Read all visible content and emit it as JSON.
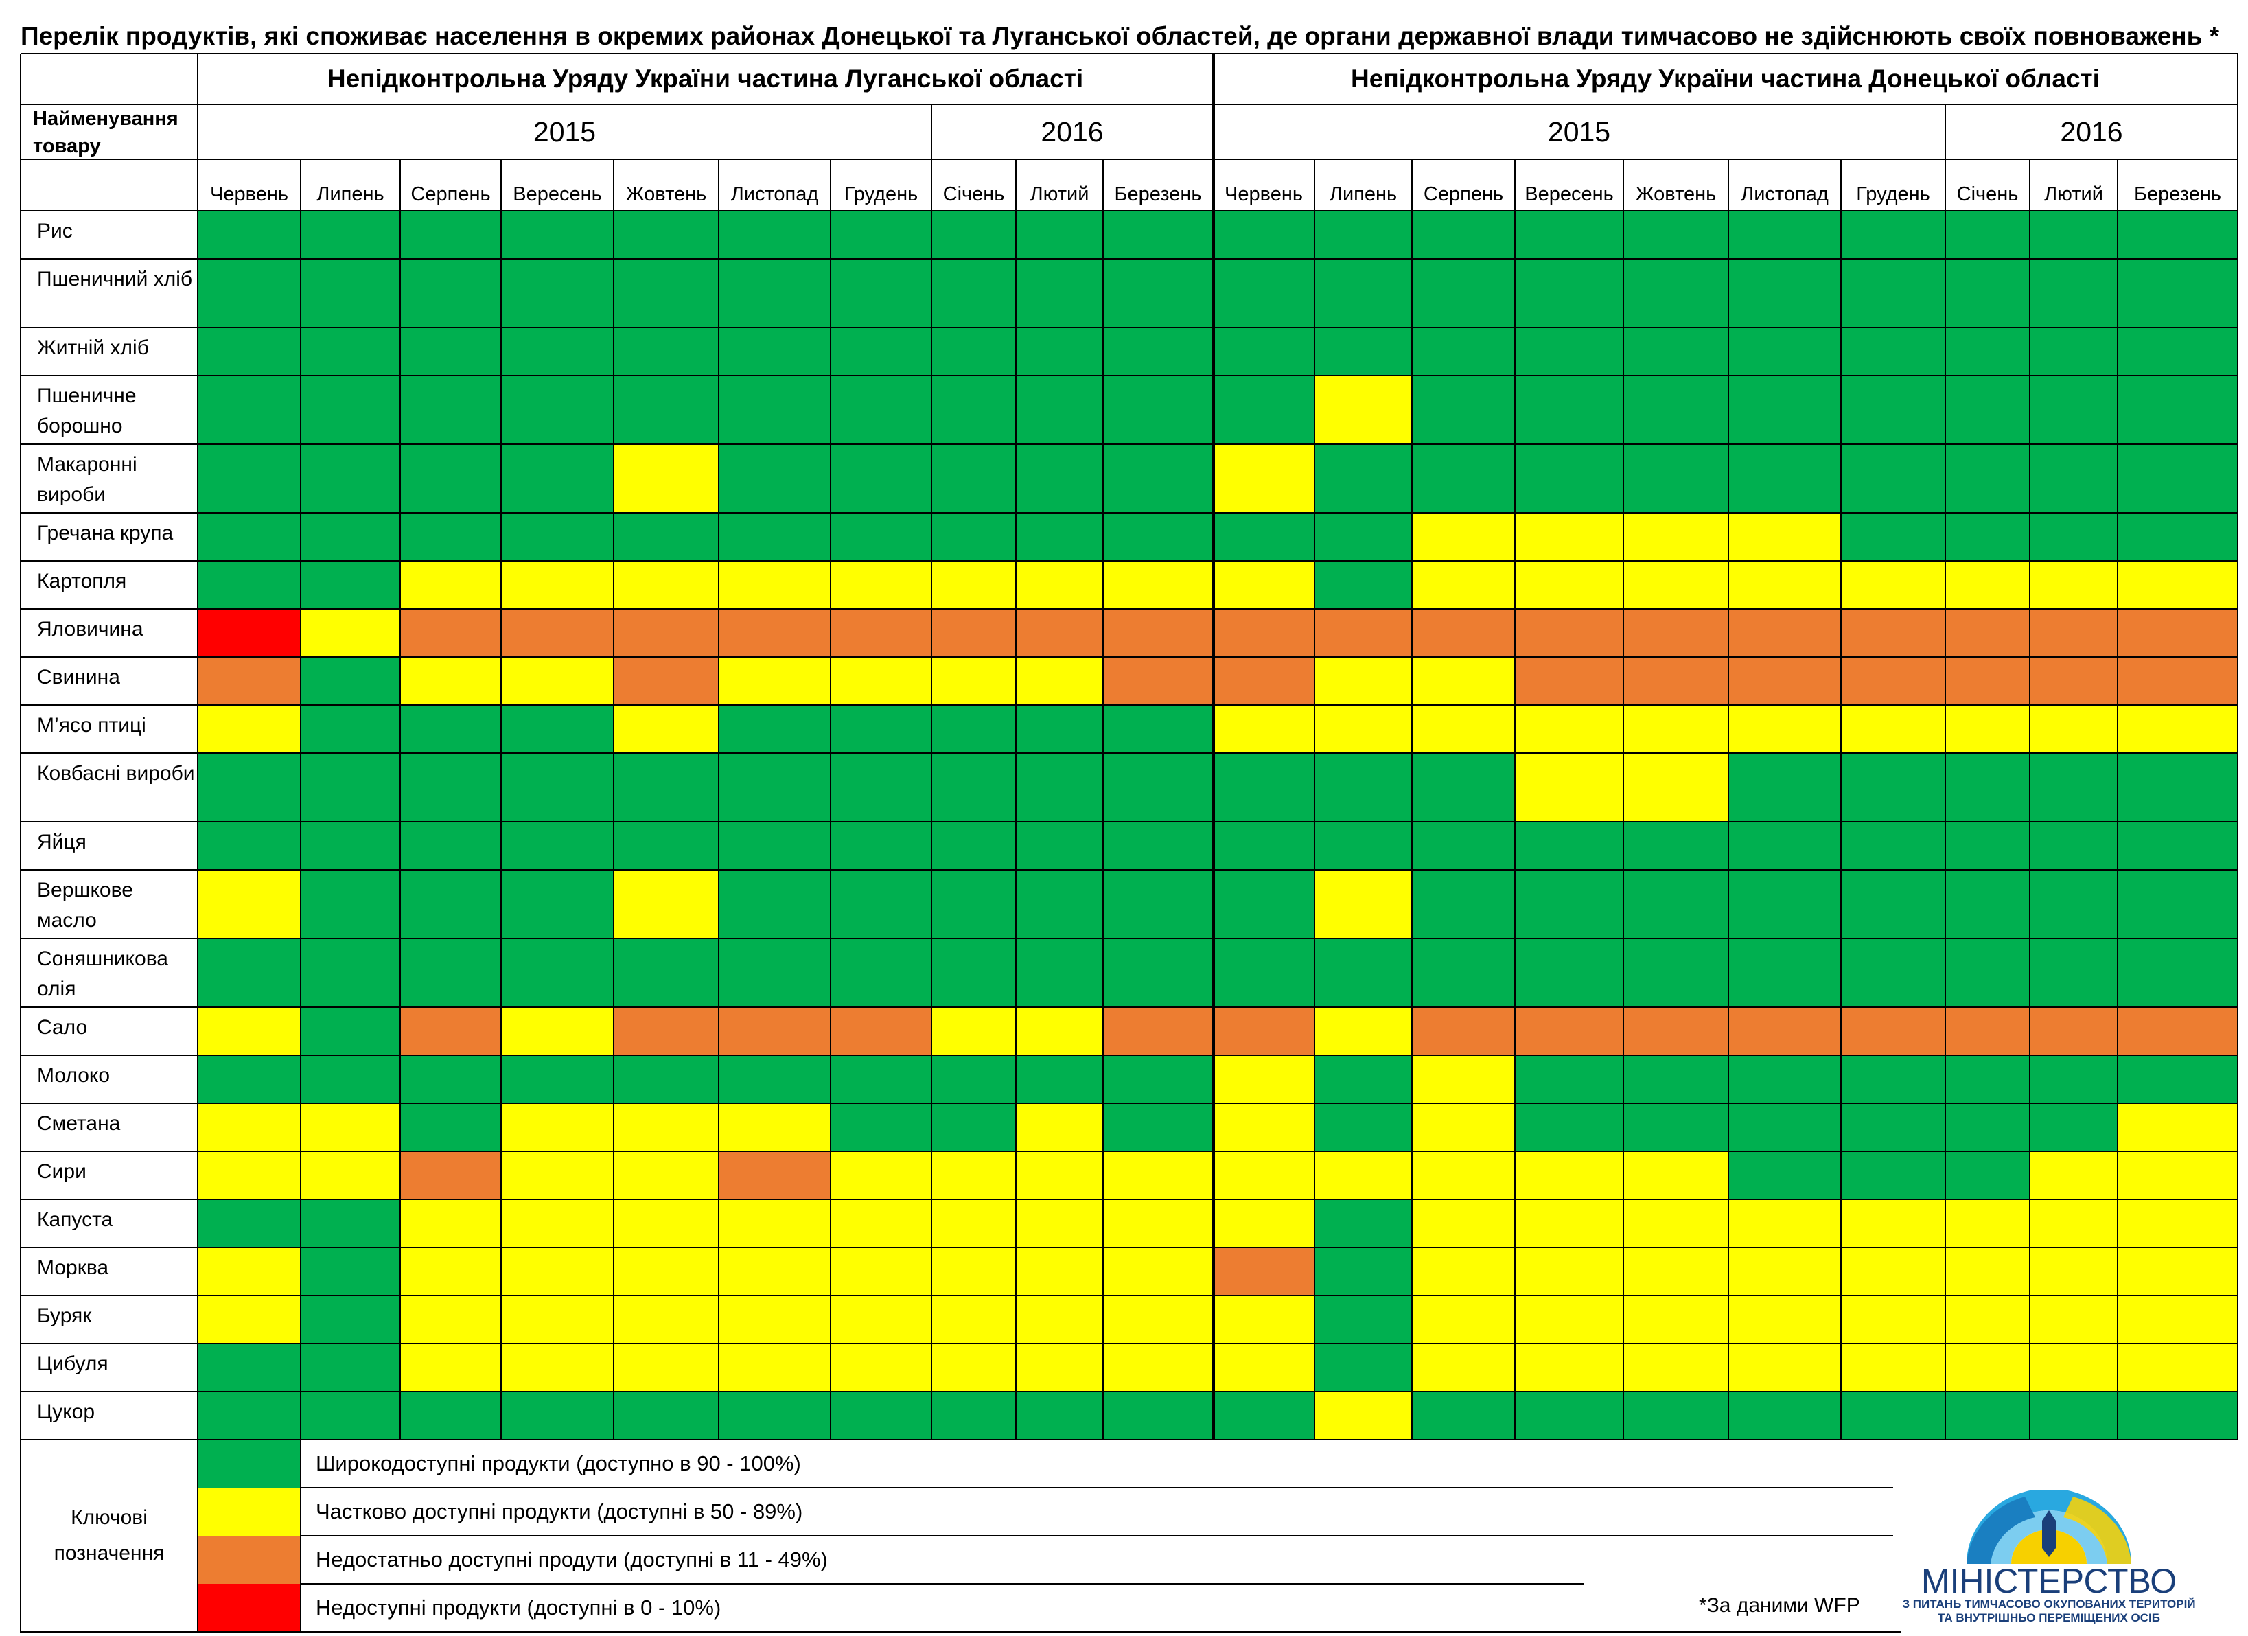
{
  "title": "Перелік продуктів, які споживає населення в окремих районах Донецької та Луганської областей, де органи державної влади тимчасово не здійснюють своїх повноважень *",
  "chart_data": {
    "type": "heatmap",
    "item_header": "Найменування товару",
    "regions": [
      {
        "name": "Непідконтрольна Уряду України частина Луганської області",
        "years": [
          {
            "year": "2015",
            "months": [
              "Червень",
              "Липень",
              "Серпень",
              "Вересень",
              "Жовтень",
              "Листопад",
              "Грудень"
            ]
          },
          {
            "year": "2016",
            "months": [
              "Січень",
              "Лютий",
              "Березень"
            ]
          }
        ]
      },
      {
        "name": "Непідконтрольна Уряду України частина Донецької області",
        "years": [
          {
            "year": "2015",
            "months": [
              "Червень",
              "Липень",
              "Серпень",
              "Вересень",
              "Жовтень",
              "Листопад",
              "Грудень"
            ]
          },
          {
            "year": "2016",
            "months": [
              "Січень",
              "Лютий",
              "Березень"
            ]
          }
        ]
      }
    ],
    "products": [
      {
        "name": "Рис",
        "luhansk": "GGGGGGGGGG",
        "donetsk": "GGGGGGGGGG"
      },
      {
        "name": "Пшеничний хліб",
        "luhansk": "GGGGGGGGGG",
        "donetsk": "GGGGGGGGGG"
      },
      {
        "name": "Житній хліб",
        "luhansk": "GGGGGGGGGG",
        "donetsk": "GGGGGGGGGG"
      },
      {
        "name": "Пшеничне борошно",
        "luhansk": "GGGGGGGGGG",
        "donetsk": "GYGGGGGGGG"
      },
      {
        "name": "Макаронні вироби",
        "luhansk": "GGGGYGGGGG",
        "donetsk": "YGGGGGGGGG"
      },
      {
        "name": "Гречана крупа",
        "luhansk": "GGGGGGGGGG",
        "donetsk": "GGYYYYGGGG"
      },
      {
        "name": "Картопля",
        "luhansk": "GGYYYYYYYY",
        "donetsk": "YGYYYYYYYY"
      },
      {
        "name": "Яловичина",
        "luhansk": "RYOOOOOOOO",
        "donetsk": "OOOOOOOOOO"
      },
      {
        "name": "Свинина",
        "luhansk": "OGYYOYYYYO",
        "donetsk": "OYYOOOOOOO"
      },
      {
        "name": "М’ясо птиці",
        "luhansk": "YGGGYGGGGG",
        "donetsk": "YYYYYYYYYY"
      },
      {
        "name": "Ковбасні вироби",
        "luhansk": "GGGGGGGGGG",
        "donetsk": "GGGYYGGGGG"
      },
      {
        "name": "Яйця",
        "luhansk": "GGGGGGGGGG",
        "donetsk": "GGGGGGGGGG"
      },
      {
        "name": "Вершкове масло",
        "luhansk": "YGGGYGGGGG",
        "donetsk": "GYGGGGGGGG"
      },
      {
        "name": "Соняшникова олія",
        "luhansk": "GGGGGGGGGG",
        "donetsk": "GGGGGGGGGG"
      },
      {
        "name": "Сало",
        "luhansk": "YGOYOOOYYO",
        "donetsk": "OYOOOOOOOO"
      },
      {
        "name": "Молоко",
        "luhansk": "GGGGGGGGGG",
        "donetsk": "YGYGGGGGGG"
      },
      {
        "name": "Сметана",
        "luhansk": "YYGYYYGGYG",
        "donetsk": "YGYGGGGGGY"
      },
      {
        "name": "Сири",
        "luhansk": "YYOYYOYYYY",
        "donetsk": "YYYYYGGGYY"
      },
      {
        "name": "Капуста",
        "luhansk": "GGYYYYYYYY",
        "donetsk": "YGYYYYYYYY"
      },
      {
        "name": "Морква",
        "luhansk": "YGYYYYYYYY",
        "donetsk": "OGYYYYYYYY"
      },
      {
        "name": "Буряк",
        "luhansk": "YGYYYYYYYY",
        "donetsk": "YGYYYYYYYY"
      },
      {
        "name": "Цибуля",
        "luhansk": "GGYYYYYYYY",
        "donetsk": "YGYYYYYYYY"
      },
      {
        "name": "Цукор",
        "luhansk": "GGGGGGGGGG",
        "donetsk": "GYGGGGGGGG"
      }
    ],
    "legend": {
      "title": "Ключові позначення",
      "items": [
        {
          "code": "G",
          "label": "Широкодоступні продукти (доступно в 90 - 100%)"
        },
        {
          "code": "Y",
          "label": "Частково доступні  продукти (доступні в 50 - 89%)"
        },
        {
          "code": "O",
          "label": "Недостатньо доступні продути (доступні в 11 - 49%)"
        },
        {
          "code": "R",
          "label": "Недоступні продукти (доступні в 0 - 10%)"
        }
      ]
    }
  },
  "colors": {
    "G": "#00b050",
    "Y": "#ffff00",
    "O": "#ed7d31",
    "R": "#ff0000",
    "grid": "#000000"
  },
  "footnote": "*За даними WFP",
  "logo": {
    "name": "МІНІСТЕРСТВО",
    "line1": "З ПИТАНЬ ТИМЧАСОВО ОКУПОВАНИХ ТЕРИТОРІЙ",
    "line2": "ТА ВНУТРІШНЬО ПЕРЕМІЩЕНИХ ОСІБ"
  }
}
